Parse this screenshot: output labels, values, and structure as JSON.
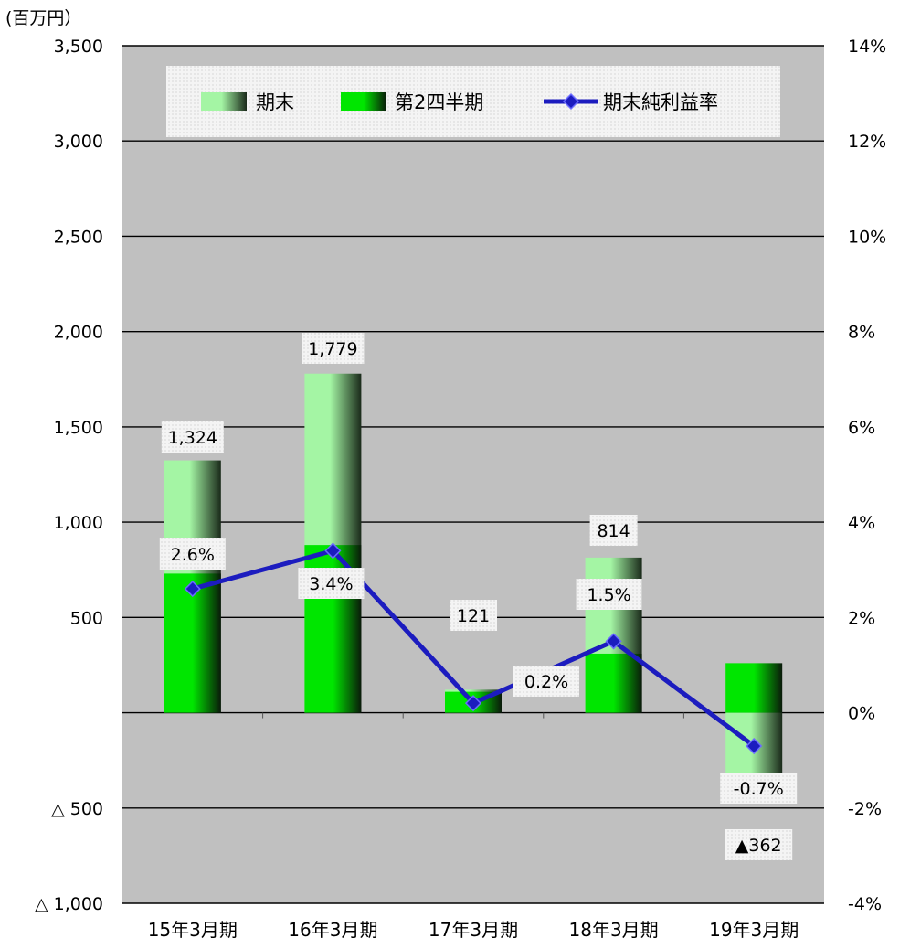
{
  "chart_data": {
    "type": "bar",
    "unit_label": "(百万円）",
    "categories": [
      "15年3月期",
      "16年3月期",
      "17年3月期",
      "18年3月期",
      "19年3月期"
    ],
    "y_left": {
      "range": [
        -1000,
        3500
      ],
      "ticks": [
        3500,
        3000,
        2500,
        2000,
        1500,
        1000,
        500,
        0,
        -500,
        -1000
      ],
      "tick_labels": [
        "3,500",
        "3,000",
        "2,500",
        "2,000",
        "1,500",
        "1,000",
        "500",
        "",
        "△ 500",
        "△ 1,000"
      ]
    },
    "y_right": {
      "range": [
        -4,
        14
      ],
      "ticks": [
        14,
        12,
        10,
        8,
        6,
        4,
        2,
        0,
        -2,
        -4
      ],
      "tick_labels": [
        "14%",
        "12%",
        "10%",
        "8%",
        "6%",
        "4%",
        "2%",
        "0%",
        "-2%",
        "-4%"
      ]
    },
    "series": [
      {
        "name": "期末",
        "kind": "bar",
        "values": [
          1324,
          1779,
          121,
          814,
          -362
        ],
        "data_labels": [
          "1,324",
          "1,779",
          "121",
          "814",
          "▲362"
        ],
        "color_light": "#a4f5a4",
        "color_dark": "#1a2a1a"
      },
      {
        "name": "第2四半期",
        "kind": "bar",
        "values": [
          730,
          880,
          110,
          310,
          260
        ],
        "color_light": "#00e600",
        "color_dark": "#0a1a0a"
      },
      {
        "name": "期末純利益率",
        "kind": "line",
        "axis": "right",
        "values": [
          2.6,
          3.4,
          0.2,
          1.5,
          -0.7
        ],
        "data_labels": [
          "2.6%",
          "3.4%",
          "0.2%",
          "1.5%",
          "-0.7%"
        ],
        "color": "#1c1cbf"
      }
    ],
    "plot_background": "#c0c0c0",
    "legend_placement": "top",
    "grid": true
  }
}
